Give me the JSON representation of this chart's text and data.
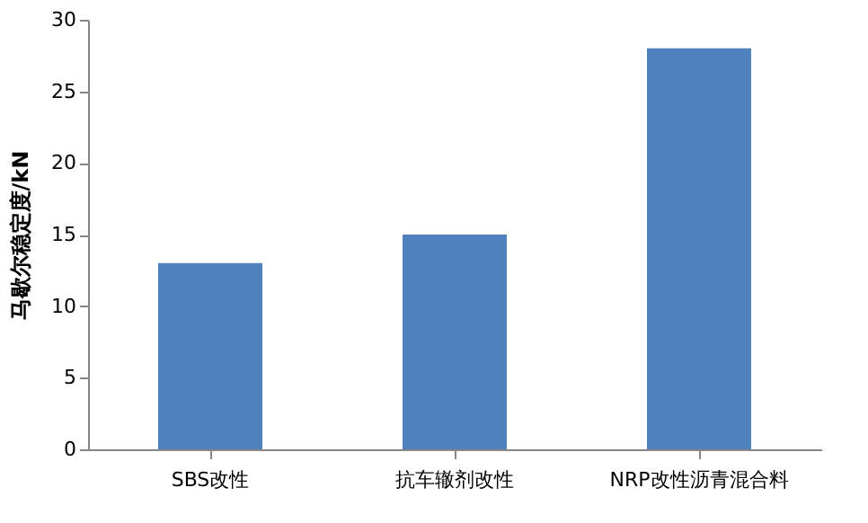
{
  "chart_data": {
    "type": "bar",
    "categories": [
      "SBS改性",
      "抗车辙剂改性",
      "NRP改性沥青混合料"
    ],
    "values": [
      13,
      15,
      28
    ],
    "color": "#4f81bd",
    "ylabel": "马歇尔稳定度/kN",
    "ylim": [
      0,
      30
    ],
    "yticks": [
      0,
      5,
      10,
      15,
      20,
      25,
      30
    ],
    "grid": false
  }
}
